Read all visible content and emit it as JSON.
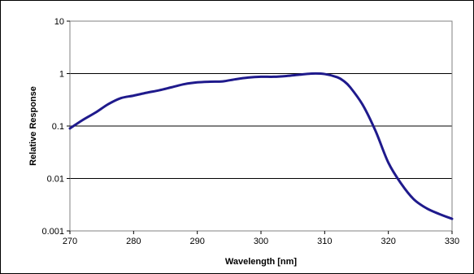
{
  "chart_data": {
    "type": "line",
    "title": "",
    "xlabel": "Wavelength [nm]",
    "ylabel": "Relative Response",
    "x_scale": "linear",
    "y_scale": "log",
    "xlim": [
      270,
      330
    ],
    "ylim": [
      0.001,
      10
    ],
    "x_ticks": [
      "270",
      "280",
      "290",
      "300",
      "310",
      "320",
      "330"
    ],
    "y_ticks": [
      "10",
      "1",
      "0.1",
      "0.01",
      "0.001"
    ],
    "grid": "horizontal major gridlines",
    "legend": "none",
    "colors": {
      "line": "#1f1a8c",
      "grid": "#000000",
      "plot_border": "#808080"
    },
    "series": [
      {
        "x": [
          270,
          272,
          274,
          276,
          278,
          280,
          282,
          284,
          286,
          288,
          290,
          292,
          294,
          296,
          298,
          300,
          302,
          304,
          306,
          308,
          310,
          312,
          313,
          314,
          316,
          318,
          320,
          322,
          324,
          326,
          328,
          330
        ],
        "y": [
          0.09,
          0.13,
          0.18,
          0.26,
          0.34,
          0.38,
          0.43,
          0.48,
          0.55,
          0.63,
          0.68,
          0.7,
          0.71,
          0.78,
          0.84,
          0.87,
          0.87,
          0.9,
          0.95,
          1.0,
          0.98,
          0.85,
          0.72,
          0.55,
          0.25,
          0.08,
          0.02,
          0.008,
          0.004,
          0.0027,
          0.0021,
          0.0017
        ]
      }
    ]
  }
}
